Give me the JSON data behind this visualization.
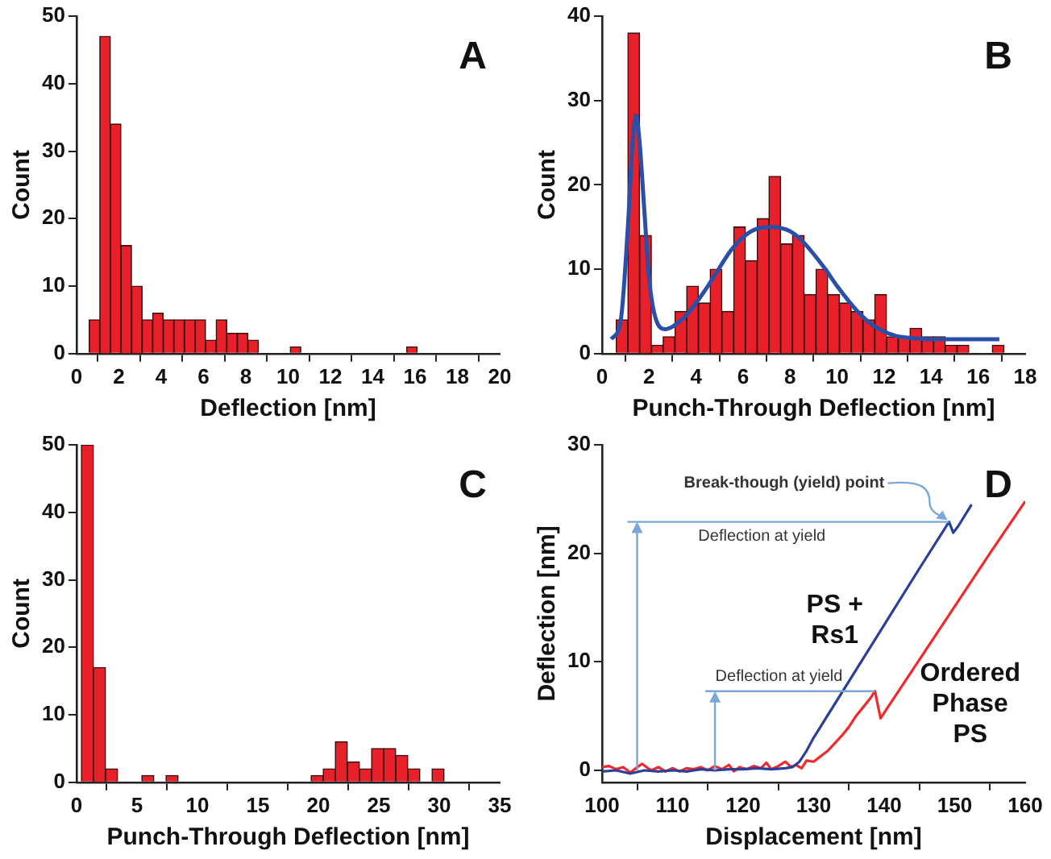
{
  "chart_data": [
    {
      "type": "histogram",
      "title": "A",
      "xlabel": "Deflection [nm]",
      "ylabel": "Count",
      "color": "#e8202a",
      "bins": [
        0.6,
        1.1,
        1.6,
        2.1,
        2.6,
        3.1,
        3.6,
        4.1,
        4.6,
        5.1,
        5.6,
        6.1,
        6.6,
        7.1,
        7.6,
        8.1,
        8.6,
        9.1,
        9.6,
        10.1,
        10.6,
        11.1,
        11.6,
        12.1,
        12.6,
        13.1,
        13.6,
        14.1,
        14.6,
        15.1,
        15.6,
        16.1
      ],
      "values": [
        5,
        47,
        34,
        16,
        10,
        5,
        6,
        5,
        5,
        5,
        5,
        2,
        5,
        3,
        3,
        2,
        0,
        0,
        0,
        1,
        0,
        0,
        0,
        0,
        0,
        0,
        0,
        0,
        0,
        0,
        1
      ],
      "xlim": [
        0,
        20
      ],
      "xticks": [
        0,
        2,
        4,
        6,
        8,
        10,
        12,
        14,
        16,
        18,
        20
      ],
      "ylim": [
        0,
        50
      ],
      "yticks": [
        0,
        10,
        20,
        30,
        40,
        50
      ],
      "grid": false,
      "legend": false
    },
    {
      "type": "histogram",
      "title": "B",
      "xlabel": "Punch-Through Deflection [nm]",
      "ylabel": "Count",
      "bins": [
        0.6,
        1.1,
        1.6,
        2.1,
        2.6,
        3.1,
        3.6,
        4.1,
        4.6,
        5.1,
        5.6,
        6.1,
        6.6,
        7.1,
        7.6,
        8.1,
        8.6,
        9.1,
        9.6,
        10.1,
        10.6,
        11.1,
        11.6,
        12.1,
        12.6,
        13.1,
        13.6,
        14.1,
        14.6,
        15.1,
        15.6,
        16.1,
        16.6,
        17.1
      ],
      "series": [
        {
          "type": "histogram",
          "color": "#e8202a",
          "values": [
            4,
            38,
            14,
            1,
            2,
            5,
            8,
            6,
            10,
            5,
            15,
            11,
            16,
            21,
            13,
            14,
            7,
            10,
            7,
            6,
            5,
            4,
            7,
            2,
            2,
            3,
            2,
            2,
            1,
            1,
            0,
            0,
            1
          ]
        },
        {
          "type": "line",
          "color": "#2b4fa8",
          "x": [
            0.4,
            0.8,
            1.1,
            1.3,
            1.45,
            1.6,
            1.8,
            2.0,
            2.3,
            2.7,
            3.0,
            3.5,
            4,
            4.5,
            5,
            5.5,
            6,
            6.5,
            7.2,
            8,
            8.5,
            9,
            9.5,
            10,
            10.5,
            11,
            11.5,
            12,
            12.5,
            13,
            14,
            15,
            16.9
          ],
          "values": [
            1.7,
            4,
            15,
            25,
            28.2,
            25,
            17,
            9,
            4,
            2.9,
            3.2,
            4.3,
            6,
            8,
            10.2,
            12.3,
            13.8,
            14.7,
            15,
            14.5,
            13.4,
            11.8,
            10,
            8,
            6.2,
            4.6,
            3.4,
            2.6,
            2.1,
            1.9,
            1.7,
            1.7,
            1.7
          ]
        }
      ],
      "xlim": [
        0,
        18
      ],
      "xticks": [
        0,
        2,
        4,
        6,
        8,
        10,
        12,
        14,
        16,
        18
      ],
      "ylim": [
        0,
        40
      ],
      "yticks": [
        0,
        10,
        20,
        30,
        40
      ],
      "grid": false,
      "legend": false
    },
    {
      "type": "histogram",
      "title": "C",
      "xlabel": "Punch-Through Deflection [nm]",
      "ylabel": "Count",
      "color": "#e8202a",
      "bins": [
        0.4,
        1.4,
        2.4,
        3.4,
        4.4,
        5.4,
        6.4,
        7.4,
        8.4,
        9.4,
        10.4,
        11.4,
        12.4,
        13.4,
        14.4,
        15.4,
        16.4,
        17.4,
        18.4,
        19.4,
        20.4,
        21.4,
        22.4,
        23.4,
        24.4,
        25.4,
        26.4,
        27.4,
        28.4,
        29.4,
        30.4
      ],
      "values": [
        50,
        17,
        2,
        0,
        0,
        1,
        0,
        1,
        0,
        0,
        0,
        0,
        0,
        0,
        0,
        0,
        0,
        0,
        0,
        1,
        2,
        6,
        3,
        2,
        5,
        5,
        4,
        2,
        0,
        2
      ],
      "xlim": [
        0,
        35
      ],
      "xticks": [
        0,
        5,
        10,
        15,
        20,
        25,
        30,
        35
      ],
      "ylim": [
        0,
        50
      ],
      "yticks": [
        0,
        10,
        20,
        30,
        40,
        50
      ],
      "grid": false,
      "legend": false
    },
    {
      "type": "line",
      "title": "D",
      "xlabel": "Displacement [nm]",
      "ylabel": "Deflection [nm]",
      "series": [
        {
          "name": "PS + Rs1",
          "color": "#2a3f9a",
          "x": [
            100,
            102,
            104,
            106,
            108,
            110,
            112,
            114,
            116,
            118,
            120,
            122,
            124,
            126,
            127,
            128,
            129,
            130,
            135,
            140,
            145,
            149.2,
            149.8,
            150.5,
            152.4
          ],
          "values": [
            -0.1,
            0,
            -0.3,
            0,
            -0.1,
            0,
            -0.1,
            0.1,
            0,
            0.1,
            0.1,
            0.2,
            0.1,
            0.2,
            0.3,
            0.8,
            1.8,
            3,
            8.2,
            13.4,
            18.6,
            22.9,
            21.9,
            22.5,
            24.5
          ]
        },
        {
          "name": "Ordered Phase PS",
          "color": "#ee2a2a",
          "x": [
            100,
            101,
            102,
            103,
            104,
            105,
            105.7,
            106.5,
            107,
            108,
            109,
            110,
            111,
            112,
            113,
            114,
            115,
            116,
            117,
            118,
            118.7,
            119.5,
            120.5,
            121.5,
            122.5,
            123.3,
            124,
            125,
            126,
            126.8,
            127.5,
            128.3,
            129,
            130,
            131,
            132,
            133,
            134,
            135,
            136,
            137,
            138,
            138.7,
            139.1,
            139.5,
            140,
            145,
            150,
            155,
            160
          ],
          "values": [
            0.3,
            0.4,
            0.1,
            0.3,
            -0.2,
            0.3,
            0.6,
            0.2,
            0,
            0.3,
            -0.1,
            0.2,
            -0.1,
            0.2,
            0.1,
            0.3,
            0,
            0.4,
            0.1,
            0.5,
            -0.1,
            0.3,
            0.1,
            0.4,
            0.2,
            0.7,
            0.1,
            0.4,
            0.8,
            0.3,
            0.5,
            0.2,
            0.9,
            0.8,
            1.3,
            1.8,
            2.5,
            3.2,
            4,
            5,
            5.8,
            6.6,
            7.3,
            6,
            4.8,
            5.3,
            10.2,
            15.1,
            20,
            24.8
          ]
        }
      ],
      "annotations": [
        {
          "text": "Break-though (yield) point",
          "x": 149.2,
          "y": 22.9
        }
      ],
      "ref_lines": [
        {
          "axis": "y",
          "value": 22.9,
          "label": "Deflection at yield",
          "color": "#7aa7d6"
        },
        {
          "axis": "y",
          "value": 7.3,
          "label": "Deflection at yield",
          "color": "#7aa7d6"
        }
      ],
      "xlim": [
        100,
        160
      ],
      "xticks": [
        100,
        110,
        120,
        130,
        140,
        150,
        160
      ],
      "ylim": [
        -1.1,
        30
      ],
      "yticks": [
        0,
        10,
        20,
        30
      ],
      "grid": false,
      "legend": false
    }
  ]
}
